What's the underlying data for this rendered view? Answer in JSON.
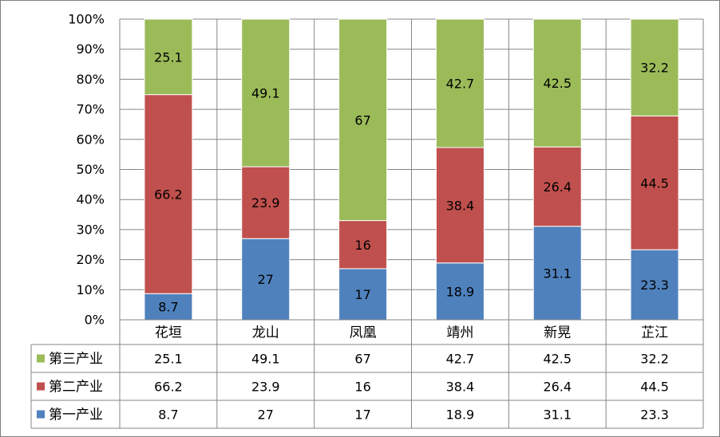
{
  "chart_data": {
    "type": "bar",
    "stacked": true,
    "normalized": true,
    "categories": [
      "花垣",
      "龙山",
      "凤凰",
      "靖州",
      "新晃",
      "芷江"
    ],
    "series": [
      {
        "name": "第一产业",
        "color": "#4f81bd",
        "values": [
          8.7,
          27,
          17,
          18.9,
          31.1,
          23.3
        ]
      },
      {
        "name": "第二产业",
        "color": "#c0504d",
        "values": [
          66.2,
          23.9,
          16,
          38.4,
          26.4,
          44.5
        ]
      },
      {
        "name": "第三产业",
        "color": "#9bbb59",
        "values": [
          25.1,
          49.1,
          67,
          42.7,
          42.5,
          32.2
        ]
      }
    ],
    "y_ticks": [
      "0%",
      "10%",
      "20%",
      "30%",
      "40%",
      "50%",
      "60%",
      "70%",
      "80%",
      "90%",
      "100%"
    ],
    "ylim": [
      0,
      100
    ],
    "grid": true,
    "data_labels": true,
    "legend": "data-table-left",
    "data_table": true
  }
}
